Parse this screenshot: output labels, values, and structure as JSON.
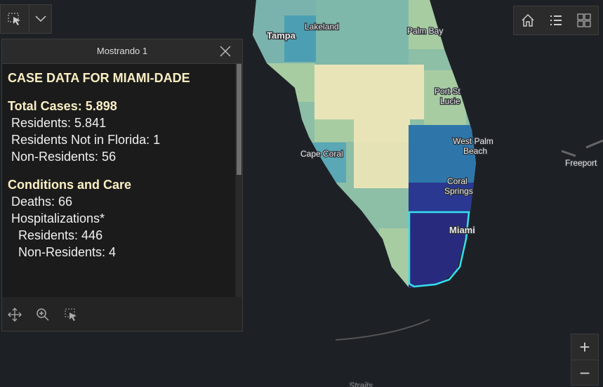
{
  "toolbar": {
    "title": "Mostrando 1"
  },
  "popup": {
    "heading": "CASE DATA FOR MIAMI-DADE",
    "total": "Total Cases: 5.898",
    "lines": [
      "Residents: 5.841",
      "Residents Not in Florida: 1",
      "Non-Residents: 56"
    ],
    "conditions": "Conditions and Care",
    "care": [
      "Deaths: 66",
      "Hospitalizations*"
    ],
    "hospital": [
      "Residents: 446",
      "Non-Residents: 4"
    ]
  },
  "map_labels": [
    "Tampa",
    "Lakeland",
    "Palm Bay",
    "Port St",
    "Lucie",
    "West Palm",
    "Beach",
    "Coral",
    "Springs",
    "Miami",
    "Cape Coral",
    "Freeport",
    "Straits"
  ],
  "zoom": [
    "+",
    "−"
  ]
}
